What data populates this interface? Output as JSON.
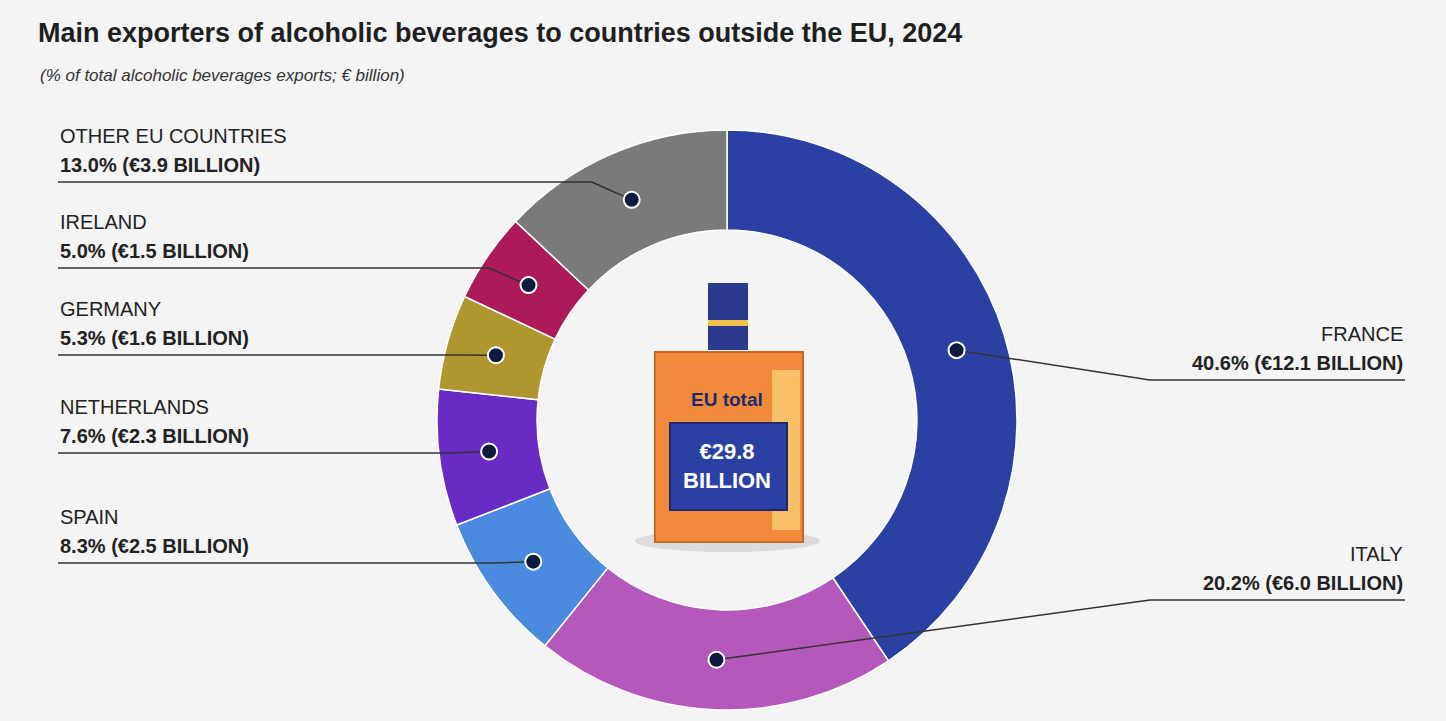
{
  "chart_data": {
    "type": "donut",
    "title": "Main exporters of alcoholic beverages to countries outside the EU, 2024",
    "subtitle": "(% of total alcoholic beverages exports; € billion)",
    "categories": [
      "FRANCE",
      "ITALY",
      "SPAIN",
      "NETHERLANDS",
      "GERMANY",
      "IRELAND",
      "OTHER EU COUNTRIES"
    ],
    "values": [
      40.6,
      20.2,
      8.3,
      7.6,
      5.3,
      5.0,
      13.0
    ],
    "value_labels": [
      "40.6% (€12.1 BILLION)",
      "20.2% (€6.0 BILLION)",
      "8.3% (€2.5 BILLION)",
      "7.6% (€2.3 BILLION)",
      "5.3% (€1.6 BILLION)",
      "5.0% (€1.5 BILLION)",
      "13.0% (€3.9 BILLION)"
    ],
    "colors": [
      "#2b40a3",
      "#b458bb",
      "#4a8bdf",
      "#6a2bc4",
      "#b0962f",
      "#ac1a5a",
      "#7a7a7a"
    ],
    "data_labels": true,
    "annotations": [
      "EU total",
      "€29.8 BILLION"
    ]
  }
}
